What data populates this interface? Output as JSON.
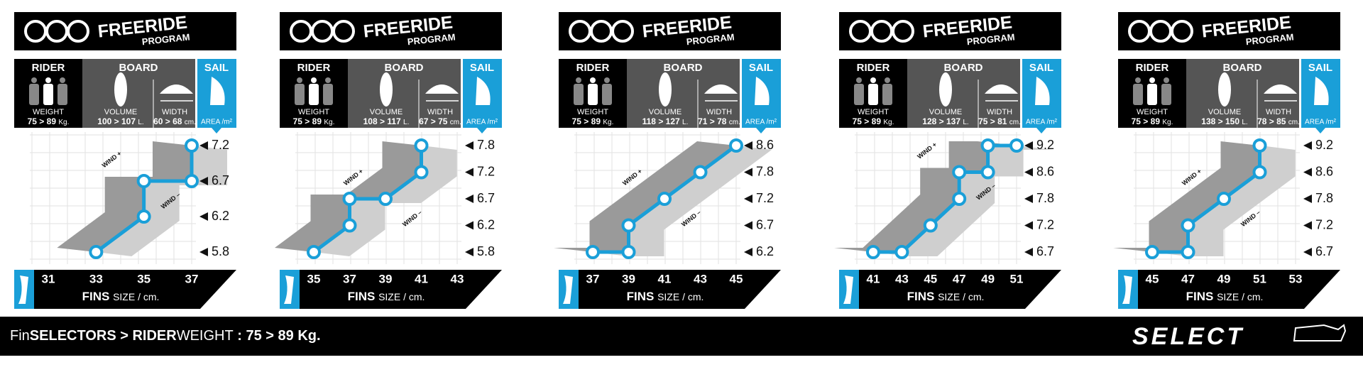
{
  "labels": {
    "freeride": "FREERIDE",
    "program": "PROGRAM",
    "rider": "RIDER",
    "board": "BOARD",
    "sail": "SAIL",
    "weight": "WEIGHT",
    "volume": "VOLUME",
    "width": "WIDTH",
    "area": "AREA /m²",
    "wind_plus": "WIND +",
    "wind_minus": "WIND –",
    "fins": "FINS",
    "size": "SIZE / cm."
  },
  "panels": [
    {
      "weight": {
        "range": "75 > 89",
        "unit": "Kg."
      },
      "volume": {
        "range": "100 > 107",
        "unit": "L."
      },
      "width": {
        "range": "60 > 68",
        "unit": "cm."
      },
      "sail_ticks": [
        5.8,
        6.2,
        6.7,
        7.2
      ],
      "fin_ticks": [
        31,
        33,
        35,
        37
      ],
      "points": [
        {
          "fin": 33,
          "sail": 5.8
        },
        {
          "fin": 35,
          "sail": 6.2
        },
        {
          "fin": 35,
          "sail": 6.7
        },
        {
          "fin": 37,
          "sail": 6.7
        },
        {
          "fin": 37,
          "sail": 7.2
        }
      ]
    },
    {
      "weight": {
        "range": "75 > 89",
        "unit": "Kg."
      },
      "volume": {
        "range": "108 > 117",
        "unit": "L."
      },
      "width": {
        "range": "67 > 75",
        "unit": "cm."
      },
      "sail_ticks": [
        5.8,
        6.2,
        6.7,
        7.2,
        7.8
      ],
      "fin_ticks": [
        35,
        37,
        39,
        41,
        43
      ],
      "points": [
        {
          "fin": 35,
          "sail": 5.8
        },
        {
          "fin": 37,
          "sail": 6.2
        },
        {
          "fin": 37,
          "sail": 6.7
        },
        {
          "fin": 39,
          "sail": 6.7
        },
        {
          "fin": 41,
          "sail": 7.2
        },
        {
          "fin": 41,
          "sail": 7.8
        }
      ]
    },
    {
      "weight": {
        "range": "75 > 89",
        "unit": "Kg."
      },
      "volume": {
        "range": "118 > 127",
        "unit": "L."
      },
      "width": {
        "range": "71 > 78",
        "unit": "cm."
      },
      "sail_ticks": [
        6.2,
        6.7,
        7.2,
        7.8,
        8.6
      ],
      "fin_ticks": [
        37,
        39,
        41,
        43,
        45
      ],
      "points": [
        {
          "fin": 37,
          "sail": 6.2
        },
        {
          "fin": 39,
          "sail": 6.2
        },
        {
          "fin": 39,
          "sail": 6.7
        },
        {
          "fin": 41,
          "sail": 7.2
        },
        {
          "fin": 43,
          "sail": 7.8
        },
        {
          "fin": 45,
          "sail": 8.6
        }
      ]
    },
    {
      "weight": {
        "range": "75 > 89",
        "unit": "Kg."
      },
      "volume": {
        "range": "128 > 137",
        "unit": "L."
      },
      "width": {
        "range": "75 > 81",
        "unit": "cm."
      },
      "sail_ticks": [
        6.7,
        7.2,
        7.8,
        8.6,
        9.2
      ],
      "fin_ticks": [
        41,
        43,
        45,
        47,
        49,
        51
      ],
      "points": [
        {
          "fin": 41,
          "sail": 6.7
        },
        {
          "fin": 43,
          "sail": 6.7
        },
        {
          "fin": 45,
          "sail": 7.2
        },
        {
          "fin": 47,
          "sail": 7.8
        },
        {
          "fin": 47,
          "sail": 8.6
        },
        {
          "fin": 49,
          "sail": 8.6
        },
        {
          "fin": 49,
          "sail": 9.2
        },
        {
          "fin": 51,
          "sail": 9.2
        }
      ]
    },
    {
      "weight": {
        "range": "75 > 89",
        "unit": "Kg."
      },
      "volume": {
        "range": "138 > 150",
        "unit": "L."
      },
      "width": {
        "range": "78 > 85",
        "unit": "cm."
      },
      "sail_ticks": [
        6.7,
        7.2,
        7.8,
        8.6,
        9.2
      ],
      "fin_ticks": [
        45,
        47,
        49,
        51,
        53
      ],
      "points": [
        {
          "fin": 45,
          "sail": 6.7
        },
        {
          "fin": 47,
          "sail": 6.7
        },
        {
          "fin": 47,
          "sail": 7.2
        },
        {
          "fin": 49,
          "sail": 7.8
        },
        {
          "fin": 51,
          "sail": 8.6
        },
        {
          "fin": 51,
          "sail": 9.2
        }
      ]
    }
  ],
  "footer": {
    "parts": [
      "Fin",
      "SELECTORS",
      " > RIDER",
      "WEIGHT",
      " : 75 > 89 Kg."
    ],
    "logo": "SELECT"
  }
}
